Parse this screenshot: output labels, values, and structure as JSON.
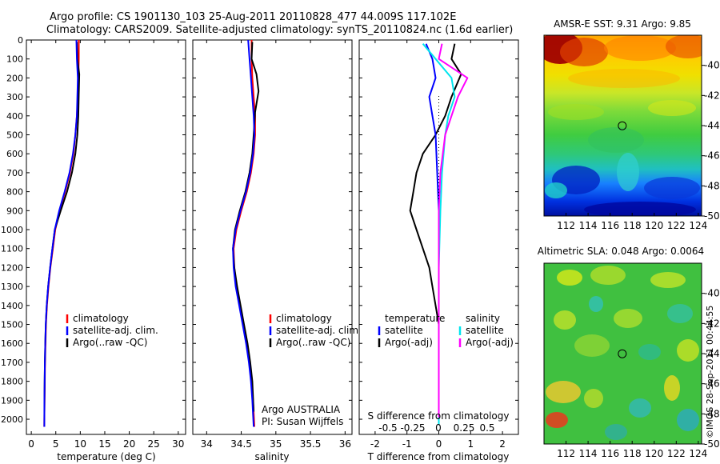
{
  "header": {
    "line1": "Argo profile: CS 1901130_103 25-Aug-2011 20110828_477 44.009S 117.102E",
    "line2": "Climatology: CARS2009. Satellite-adjusted climatology: synTS_20110824.nc (1.6d earlier)"
  },
  "colors": {
    "climatology": "#ff0000",
    "satellite": "#0000ff",
    "argo": "#000000",
    "salinity_satellite": "#00e5ee",
    "salinity_argo_adj": "#ff00ff"
  },
  "chart_data": [
    {
      "type": "line",
      "panel": "temperature",
      "xlabel": "temperature (deg C)",
      "ylabel": "",
      "xlim": [
        -1,
        31.5
      ],
      "ylim": [
        2080,
        0
      ],
      "xticks": [
        0,
        5,
        10,
        15,
        20,
        25,
        30
      ],
      "yticks": [
        0,
        100,
        200,
        300,
        400,
        500,
        600,
        700,
        800,
        900,
        1000,
        1100,
        1200,
        1300,
        1400,
        1500,
        1600,
        1700,
        1800,
        1900,
        2000
      ],
      "legend": [
        "climatology",
        "satellite-adj. clim.",
        "Argo(..raw -QC)"
      ],
      "series": [
        {
          "name": "climatology",
          "color": "#ff0000",
          "width": 2,
          "x": [
            9.7,
            9.7,
            9.6,
            9.5,
            9.3,
            9.0,
            8.6,
            7.9,
            6.9,
            5.8,
            4.9,
            4.4,
            3.9,
            3.5,
            3.2,
            3.0,
            2.9,
            2.8,
            2.75,
            2.7,
            2.65
          ],
          "y": [
            0,
            100,
            200,
            300,
            400,
            500,
            600,
            700,
            800,
            900,
            1000,
            1100,
            1200,
            1300,
            1400,
            1500,
            1600,
            1700,
            1800,
            1900,
            2040
          ]
        },
        {
          "name": "Argo(..raw -QC)",
          "color": "#000000",
          "width": 2,
          "x": [
            9.3,
            9.4,
            9.8,
            9.7,
            9.6,
            9.4,
            9.0,
            8.3,
            7.3,
            6.0,
            4.8,
            4.3,
            3.85,
            3.45,
            3.15,
            2.95,
            2.85,
            2.78,
            2.72,
            2.68
          ],
          "y": [
            10,
            100,
            180,
            280,
            400,
            500,
            600,
            700,
            800,
            900,
            1000,
            1100,
            1200,
            1300,
            1400,
            1500,
            1600,
            1700,
            1800,
            1960
          ]
        },
        {
          "name": "satellite-adj. clim.",
          "color": "#0000ff",
          "width": 2,
          "x": [
            9.2,
            9.3,
            9.5,
            9.4,
            9.3,
            9.0,
            8.5,
            7.8,
            6.8,
            5.7,
            4.8,
            4.3,
            3.85,
            3.45,
            3.15,
            2.95,
            2.85,
            2.78,
            2.72,
            2.68,
            2.66
          ],
          "y": [
            0,
            100,
            200,
            300,
            400,
            500,
            600,
            700,
            800,
            900,
            1000,
            1100,
            1200,
            1300,
            1400,
            1500,
            1600,
            1700,
            1800,
            1900,
            2040
          ]
        }
      ]
    },
    {
      "type": "line",
      "panel": "salinity",
      "xlabel": "salinity",
      "xlim": [
        33.8,
        36.1
      ],
      "ylim": [
        2080,
        0
      ],
      "xticks": [
        34,
        34.5,
        35,
        35.5,
        36
      ],
      "legend": [
        "climatology",
        "satellite-adj. clim.",
        "Argo(..raw -QC)"
      ],
      "annotation": [
        "Argo AUSTRALIA",
        "PI: Susan Wijffels"
      ],
      "series": [
        {
          "name": "climatology",
          "color": "#ff0000",
          "width": 2,
          "x": [
            34.65,
            34.65,
            34.66,
            34.68,
            34.7,
            34.7,
            34.68,
            34.64,
            34.58,
            34.5,
            34.43,
            34.39,
            34.4,
            34.43,
            34.48,
            34.53,
            34.58,
            34.62,
            34.65,
            34.67,
            34.69
          ],
          "y": [
            0,
            100,
            200,
            300,
            400,
            500,
            600,
            700,
            800,
            900,
            1000,
            1100,
            1200,
            1300,
            1400,
            1500,
            1600,
            1700,
            1800,
            1900,
            2040
          ]
        },
        {
          "name": "Argo(..raw -QC)",
          "color": "#000000",
          "width": 2,
          "x": [
            34.66,
            34.65,
            34.72,
            34.75,
            34.7,
            34.68,
            34.66,
            34.62,
            34.56,
            34.48,
            34.41,
            34.38,
            34.4,
            34.44,
            34.49,
            34.54,
            34.59,
            34.63,
            34.66,
            34.68
          ],
          "y": [
            10,
            100,
            180,
            270,
            380,
            500,
            600,
            700,
            800,
            900,
            1000,
            1100,
            1200,
            1300,
            1400,
            1500,
            1600,
            1700,
            1800,
            1960
          ]
        },
        {
          "name": "satellite-adj. clim.",
          "color": "#0000ff",
          "width": 2,
          "x": [
            34.6,
            34.62,
            34.64,
            34.66,
            34.68,
            34.69,
            34.67,
            34.63,
            34.57,
            34.49,
            34.42,
            34.38,
            34.39,
            34.42,
            34.47,
            34.52,
            34.57,
            34.61,
            34.64,
            34.66,
            34.68
          ],
          "y": [
            0,
            100,
            200,
            300,
            400,
            500,
            600,
            700,
            800,
            900,
            1000,
            1100,
            1200,
            1300,
            1400,
            1500,
            1600,
            1700,
            1800,
            1900,
            2040
          ]
        }
      ]
    },
    {
      "type": "line",
      "panel": "difference",
      "xlabel": "T difference from climatology",
      "xlabel_top": "S difference from climatology",
      "xlim": [
        -2.5,
        2.5
      ],
      "ylim": [
        2080,
        0
      ],
      "xticks": [
        -2,
        -1,
        0,
        1,
        2
      ],
      "xticklabels": [
        "-2",
        "-1",
        "0",
        "1",
        "2"
      ],
      "xticks_top": [
        -0.5,
        -0.25,
        0,
        0.25,
        0.5
      ],
      "xticks_top_labels": [
        "-0.5",
        "-0.25",
        "0",
        "0.25",
        "0.5"
      ],
      "legend_left": [
        "temperature",
        "satellite",
        "Argo(-adj)"
      ],
      "legend_right": [
        "salinity",
        "satellite",
        "Argo(-adj)"
      ],
      "series": [
        {
          "name": "temperature Argo(-adj)",
          "color": "#000000",
          "width": 2,
          "x": [
            0.5,
            0.4,
            0.7,
            0.4,
            0.2,
            -0.1,
            -0.5,
            -0.7,
            -0.8,
            -0.9,
            -0.7,
            -0.5,
            -0.3,
            -0.2,
            -0.1,
            0,
            0,
            0,
            0
          ],
          "y": [
            20,
            100,
            180,
            300,
            400,
            500,
            600,
            700,
            800,
            900,
            1000,
            1100,
            1200,
            1300,
            1400,
            1500,
            1700,
            1900,
            1990
          ]
        },
        {
          "name": "temperature satellite",
          "color": "#0000ff",
          "width": 2,
          "x": [
            -0.4,
            -0.2,
            -0.1,
            -0.3,
            -0.2,
            -0.1,
            -0.05,
            0,
            0,
            0,
            0
          ],
          "y": [
            20,
            100,
            200,
            300,
            400,
            500,
            700,
            900,
            1200,
            1600,
            2030
          ]
        },
        {
          "name": "salinity satellite",
          "color": "#00e5ee",
          "width": 2,
          "x": [
            -0.5,
            -0.1,
            0.4,
            0.5,
            0.3,
            0.2,
            0.1,
            0.05,
            0,
            0,
            0
          ],
          "y": [
            20,
            100,
            200,
            300,
            400,
            500,
            700,
            900,
            1200,
            1600,
            2030
          ]
        },
        {
          "name": "salinity Argo(-adj)",
          "color": "#ff00ff",
          "width": 2,
          "x": [
            0.1,
            0.0,
            0.9,
            0.6,
            0.4,
            0.2,
            0.05,
            0,
            0,
            0,
            0
          ],
          "y": [
            20,
            100,
            200,
            300,
            400,
            500,
            700,
            900,
            1200,
            1600,
            1990
          ]
        }
      ]
    },
    {
      "type": "heatmap",
      "panel": "sst_map",
      "title": "AMSR-E SST: 9.31  Argo: 9.85",
      "xlim": [
        110,
        124.3
      ],
      "ylim": [
        -50,
        -38
      ],
      "xticks": [
        112,
        114,
        116,
        118,
        120,
        122,
        124
      ],
      "yticks": [
        -40,
        -42,
        -44,
        -46,
        -48,
        -50
      ],
      "marker": {
        "lon": 117.1,
        "lat": -44.01
      }
    },
    {
      "type": "heatmap",
      "panel": "sla_map",
      "title": "Altimetric SLA: 0.048  Argo: 0.0064",
      "xlim": [
        110,
        124.3
      ],
      "ylim": [
        -50,
        -38
      ],
      "xticks": [
        112,
        114,
        116,
        118,
        120,
        122,
        124
      ],
      "yticks": [
        -40,
        -42,
        -44,
        -46,
        -48,
        -50
      ],
      "marker": {
        "lon": 117.1,
        "lat": -44.01
      }
    }
  ],
  "credit": "©IMOS 28-Sep-2011 00:44:55"
}
